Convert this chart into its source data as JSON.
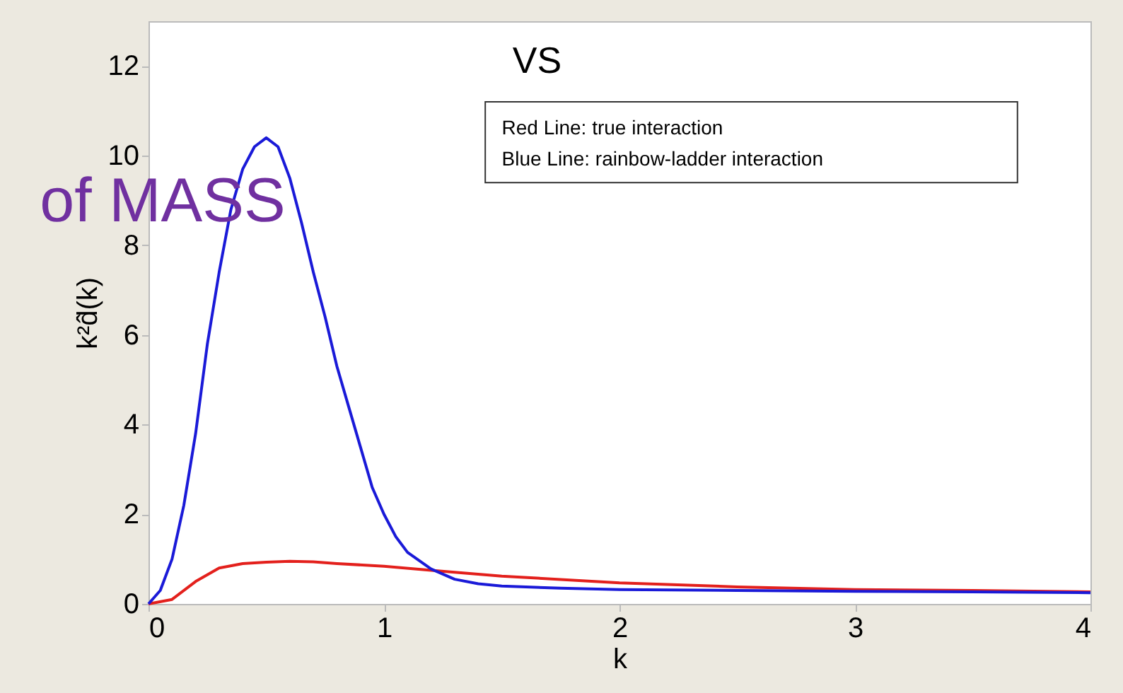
{
  "chart_data": {
    "type": "line",
    "xlabel": "k",
    "ylabel": "k²d̂(k)",
    "xlim": [
      0,
      4
    ],
    "ylim": [
      0,
      13
    ],
    "xticks": [
      0,
      1,
      2,
      3,
      4
    ],
    "yticks": [
      0,
      2,
      4,
      6,
      8,
      10,
      12
    ],
    "grid": false,
    "annotations": [
      "VS",
      "of MASS",
      "Red Line: true interaction",
      "Blue Line: rainbow-ladder interaction"
    ],
    "series": [
      {
        "color": "#e3201c",
        "x": [
          0,
          0.1,
          0.2,
          0.3,
          0.4,
          0.5,
          0.6,
          0.7,
          0.8,
          1.0,
          1.2,
          1.5,
          2,
          2.5,
          3,
          3.5,
          4
        ],
        "values": [
          0,
          0.1,
          0.5,
          0.8,
          0.9,
          0.93,
          0.95,
          0.94,
          0.9,
          0.84,
          0.75,
          0.62,
          0.47,
          0.38,
          0.32,
          0.3,
          0.27
        ]
      },
      {
        "color": "#1a1ad8",
        "x": [
          0,
          0.05,
          0.1,
          0.15,
          0.2,
          0.25,
          0.3,
          0.35,
          0.4,
          0.45,
          0.5,
          0.55,
          0.6,
          0.65,
          0.7,
          0.75,
          0.8,
          0.85,
          0.9,
          0.95,
          1.0,
          1.05,
          1.1,
          1.2,
          1.3,
          1.4,
          1.5,
          1.75,
          2,
          2.5,
          3,
          3.5,
          4
        ],
        "values": [
          0,
          0.3,
          1.0,
          2.2,
          3.8,
          5.8,
          7.4,
          8.8,
          9.7,
          10.2,
          10.4,
          10.2,
          9.5,
          8.5,
          7.4,
          6.4,
          5.3,
          4.4,
          3.5,
          2.6,
          2.0,
          1.5,
          1.15,
          0.78,
          0.55,
          0.45,
          0.4,
          0.35,
          0.32,
          0.3,
          0.28,
          0.27,
          0.25
        ]
      }
    ]
  }
}
